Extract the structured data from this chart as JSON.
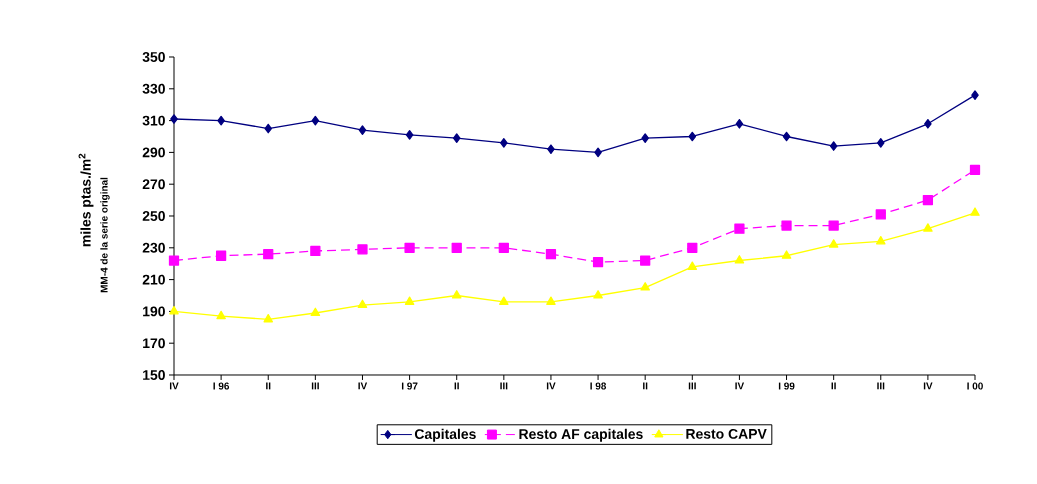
{
  "chart_data": {
    "type": "line",
    "ylabel": "miles ptas./m$^{2}$",
    "annotations": [
      "MM-4 de la serie original"
    ],
    "categories": [
      "IV",
      "I 96",
      "II",
      "III",
      "IV",
      "I 97",
      "II",
      "III",
      "IV",
      "I 98",
      "II",
      "III",
      "IV",
      "I 99",
      "II",
      "III",
      "IV",
      "I 00"
    ],
    "series": [
      {
        "name": "Capitales",
        "color": "#000080",
        "marker": "diamond",
        "line_style": "solid",
        "values": [
          311,
          310,
          305,
          310,
          304,
          301,
          299,
          296,
          292,
          290,
          299,
          300,
          308,
          300,
          294,
          296,
          308,
          326
        ]
      },
      {
        "name": "Resto AF capitales",
        "color": "#ff00ff",
        "marker": "square",
        "line_style": "dashed",
        "values": [
          222,
          225,
          226,
          228,
          229,
          230,
          230,
          230,
          226,
          221,
          222,
          230,
          242,
          244,
          244,
          251,
          260,
          279
        ]
      },
      {
        "name": "Resto CAPV",
        "color": "#ffff00",
        "marker": "triangle",
        "line_style": "solid",
        "values": [
          190,
          187,
          185,
          189,
          194,
          196,
          200,
          196,
          196,
          200,
          205,
          218,
          222,
          225,
          232,
          234,
          242,
          252
        ]
      }
    ],
    "ylim": [
      150,
      350
    ],
    "yticks": [
      150,
      170,
      190,
      210,
      230,
      250,
      270,
      290,
      310,
      330,
      350
    ],
    "grid": false,
    "legend": "bottom"
  }
}
